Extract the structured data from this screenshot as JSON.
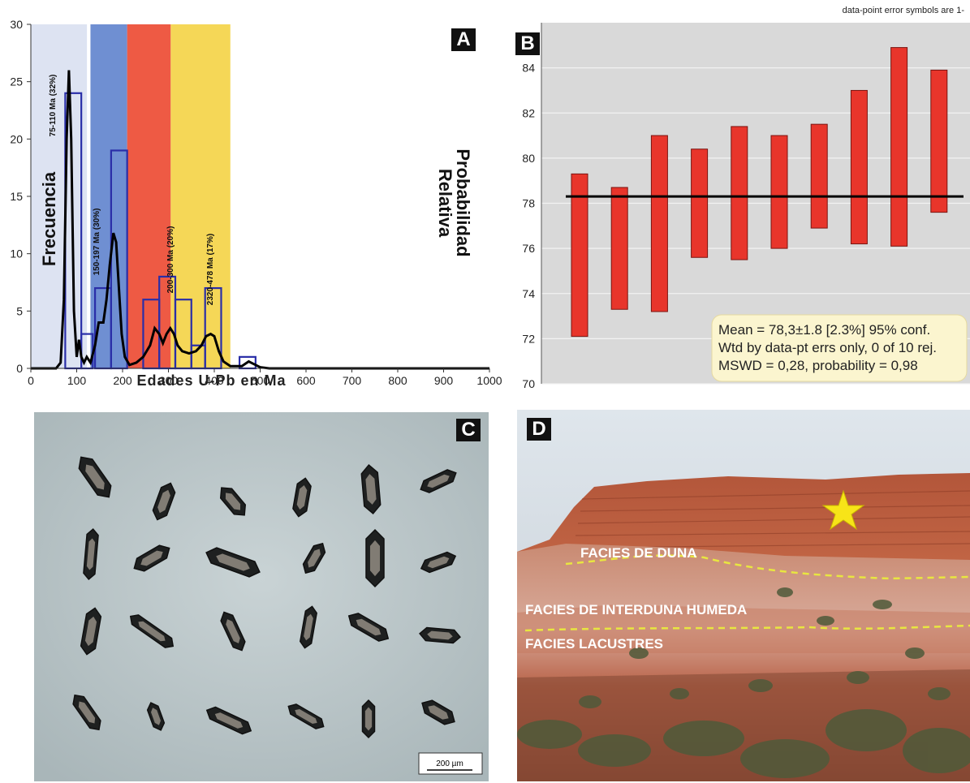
{
  "panels": {
    "a": {
      "letter": "A",
      "chart_data": {
        "type": "bar",
        "xlabel": "Edades U-Pb en Ma",
        "ylabel": "Frecuencia",
        "y2label_line1": "Probabilidad",
        "y2label_line2": "Relativa",
        "xlim": [
          0,
          1000
        ],
        "ylim": [
          0,
          30
        ],
        "xticks": [
          "0",
          "100",
          "200",
          "300",
          "400",
          "500",
          "600",
          "700",
          "800",
          "900",
          "1000"
        ],
        "yticks": [
          "0",
          "5",
          "10",
          "15",
          "20",
          "25",
          "30"
        ],
        "bins": [
          {
            "x0": 75,
            "x1": 110,
            "value": 24
          },
          {
            "x0": 110,
            "x1": 135,
            "value": 3
          },
          {
            "x0": 140,
            "x1": 175,
            "value": 7
          },
          {
            "x0": 175,
            "x1": 210,
            "value": 19
          },
          {
            "x0": 245,
            "x1": 280,
            "value": 6
          },
          {
            "x0": 280,
            "x1": 315,
            "value": 8
          },
          {
            "x0": 315,
            "x1": 350,
            "value": 6
          },
          {
            "x0": 350,
            "x1": 380,
            "value": 2
          },
          {
            "x0": 380,
            "x1": 415,
            "value": 7
          },
          {
            "x0": 455,
            "x1": 490,
            "value": 1
          }
        ],
        "curve": [
          [
            0,
            0
          ],
          [
            55,
            0
          ],
          [
            65,
            0.5
          ],
          [
            72,
            6
          ],
          [
            78,
            20
          ],
          [
            83,
            26
          ],
          [
            88,
            20
          ],
          [
            94,
            5
          ],
          [
            100,
            1
          ],
          [
            105,
            2.5
          ],
          [
            110,
            1
          ],
          [
            116,
            0.5
          ],
          [
            122,
            1
          ],
          [
            130,
            0.5
          ],
          [
            140,
            2
          ],
          [
            148,
            4
          ],
          [
            158,
            4
          ],
          [
            165,
            6
          ],
          [
            172,
            9
          ],
          [
            180,
            11.8
          ],
          [
            186,
            11
          ],
          [
            192,
            7
          ],
          [
            198,
            3
          ],
          [
            205,
            1
          ],
          [
            215,
            0.3
          ],
          [
            230,
            0.5
          ],
          [
            245,
            1
          ],
          [
            260,
            2
          ],
          [
            270,
            3.5
          ],
          [
            280,
            3
          ],
          [
            288,
            2.2
          ],
          [
            296,
            3
          ],
          [
            304,
            3.5
          ],
          [
            312,
            3
          ],
          [
            320,
            2
          ],
          [
            330,
            1.5
          ],
          [
            345,
            1.3
          ],
          [
            360,
            1.5
          ],
          [
            372,
            2
          ],
          [
            382,
            2.8
          ],
          [
            392,
            3
          ],
          [
            400,
            2.8
          ],
          [
            410,
            1.5
          ],
          [
            420,
            0.6
          ],
          [
            435,
            0.2
          ],
          [
            460,
            0.2
          ],
          [
            475,
            0.6
          ],
          [
            485,
            0.4
          ],
          [
            500,
            0.1
          ],
          [
            520,
            0
          ],
          [
            1000,
            0
          ]
        ],
        "bands": [
          {
            "x0": 0,
            "x1": 125,
            "color": "#dde3f2",
            "label": "75-110 Ma (32%)"
          },
          {
            "x0": 130,
            "x1": 210,
            "color": "#6f8fd2",
            "label": "150-197 Ma (30%)"
          },
          {
            "x0": 210,
            "x1": 305,
            "color": "#ee5a44",
            "label": "200-300 Ma (20%)"
          },
          {
            "x0": 305,
            "x1": 435,
            "color": "#f5d757",
            "label": "2320-478 Ma (17%)"
          }
        ],
        "bar_color": "#2a2ea8",
        "curve_color": "#000000"
      }
    },
    "b": {
      "letter": "B",
      "note": "data-point error symbols are 1-",
      "chart_data": {
        "type": "bar",
        "ylim": [
          70,
          86
        ],
        "yticks": [
          "70",
          "72",
          "74",
          "76",
          "78",
          "80",
          "82",
          "84"
        ],
        "mean_line": 78.3,
        "ranges": [
          [
            72.1,
            79.3
          ],
          [
            73.3,
            78.7
          ],
          [
            73.2,
            81.0
          ],
          [
            75.6,
            80.4
          ],
          [
            75.5,
            81.4
          ],
          [
            76.0,
            81.0
          ],
          [
            76.9,
            81.5
          ],
          [
            76.2,
            83.0
          ],
          [
            76.1,
            84.9
          ],
          [
            77.6,
            83.9
          ]
        ],
        "bar_color": "#e8352b",
        "stats": [
          "Mean = 78,3±1.8  [2.3%]  95% conf.",
          "Wtd by data-pt errs only, 0 of 10 rej.",
          "MSWD = 0,28, probability = 0,98"
        ]
      }
    },
    "c": {
      "letter": "C",
      "scale_label": "200 µm"
    },
    "d": {
      "letter": "D",
      "facies": [
        "FACIES DE DUNA",
        "FACIES DE INTERDUNA HUMEDA",
        "FACIES LACUSTRES"
      ]
    }
  }
}
